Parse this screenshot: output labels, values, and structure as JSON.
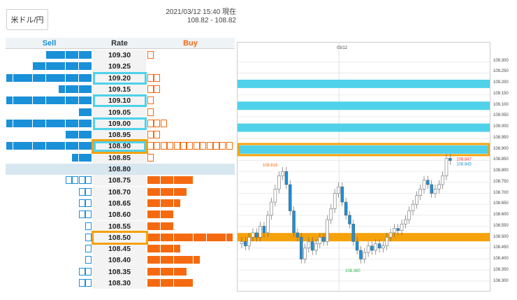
{
  "toolbar": {
    "pair_label": "米ドル/円"
  },
  "status": {
    "timestamp": "2021/03/12 15:40 現在",
    "bid_ask": "108.82 - 108.82"
  },
  "table": {
    "sell_header": "Sell",
    "rate_header": "Rate",
    "buy_header": "Buy"
  },
  "rates": [
    {
      "rate": "109.30",
      "sell": 7,
      "sell_type": "filled",
      "buy": 1,
      "buy_type": "empty"
    },
    {
      "rate": "109.25",
      "sell": 9,
      "sell_type": "filled",
      "buy": 0,
      "buy_type": "empty"
    },
    {
      "rate": "109.20",
      "sell": 13,
      "sell_type": "filled",
      "buy": 2,
      "buy_type": "empty"
    },
    {
      "rate": "109.15",
      "sell": 5,
      "sell_type": "filled",
      "buy": 2,
      "buy_type": "empty"
    },
    {
      "rate": "109.10",
      "sell": 13,
      "sell_type": "filled",
      "buy": 1,
      "buy_type": "empty"
    },
    {
      "rate": "109.05",
      "sell": 2,
      "sell_type": "filled",
      "buy": 1,
      "buy_type": "empty"
    },
    {
      "rate": "109.00",
      "sell": 13,
      "sell_type": "filled",
      "buy": 3,
      "buy_type": "empty"
    },
    {
      "rate": "108.95",
      "sell": 4,
      "sell_type": "filled",
      "buy": 2,
      "buy_type": "empty"
    },
    {
      "rate": "108.90",
      "sell": 13,
      "sell_type": "filled",
      "buy": 13,
      "buy_type": "empty"
    },
    {
      "rate": "108.85",
      "sell": 3,
      "sell_type": "filled",
      "buy": 1,
      "buy_type": "empty"
    },
    {
      "rate": "108.80",
      "sell": 0,
      "sell_type": "filled",
      "buy": 0,
      "buy_type": "empty"
    },
    {
      "rate": "108.75",
      "sell": 4,
      "sell_type": "empty",
      "buy": 7,
      "buy_type": "filled"
    },
    {
      "rate": "108.70",
      "sell": 2,
      "sell_type": "empty",
      "buy": 6,
      "buy_type": "filled"
    },
    {
      "rate": "108.65",
      "sell": 2,
      "sell_type": "empty",
      "buy": 5,
      "buy_type": "filled"
    },
    {
      "rate": "108.60",
      "sell": 2,
      "sell_type": "empty",
      "buy": 4,
      "buy_type": "filled"
    },
    {
      "rate": "108.55",
      "sell": 1,
      "sell_type": "empty",
      "buy": 4,
      "buy_type": "filled"
    },
    {
      "rate": "108.50",
      "sell": 1,
      "sell_type": "empty",
      "buy": 13,
      "buy_type": "filled"
    },
    {
      "rate": "108.45",
      "sell": 1,
      "sell_type": "empty",
      "buy": 5,
      "buy_type": "filled"
    },
    {
      "rate": "108.40",
      "sell": 1,
      "sell_type": "empty",
      "buy": 8,
      "buy_type": "filled"
    },
    {
      "rate": "108.35",
      "sell": 2,
      "sell_type": "empty",
      "buy": 6,
      "buy_type": "filled"
    },
    {
      "rate": "108.30",
      "sell": 2,
      "sell_type": "empty",
      "buy": 7,
      "buy_type": "filled"
    }
  ],
  "chart_data": {
    "type": "candlestick",
    "date_label": "03/12",
    "ylim": [
      108.28,
      109.35
    ],
    "y_ticks": [
      "109.300",
      "109.250",
      "109.200",
      "109.150",
      "109.100",
      "109.050",
      "109.000",
      "108.950",
      "108.900",
      "108.850",
      "108.800",
      "108.750",
      "108.700",
      "108.650",
      "108.600",
      "108.550",
      "108.500",
      "108.450",
      "108.400",
      "108.350",
      "108.300"
    ],
    "high_label": "108.816",
    "low_label": "108.360",
    "last_ask": "108.847",
    "last_bid": "108.845",
    "cyan_levels": [
      109.2,
      109.1,
      109.0,
      108.9
    ],
    "orange_levels": [
      108.9,
      108.5
    ],
    "highlight_cyan_color": "#4fd1ea",
    "highlight_orange_color": "#f5a20c"
  }
}
